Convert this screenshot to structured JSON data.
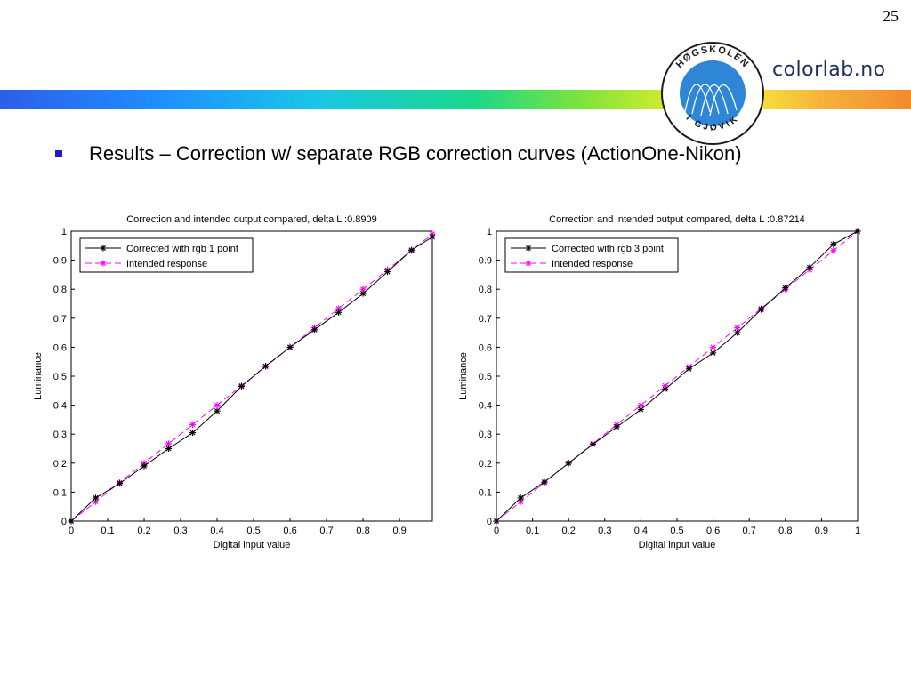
{
  "slide": {
    "page_number": "25",
    "brand": "colorlab.no",
    "logo": {
      "top_text": "HØGSKOLEN",
      "bottom_text": "I GJØVIK"
    },
    "bullet_text": "Results – Correction w/ separate RGB correction curves (ActionOne-Nikon)"
  },
  "chart_data": [
    {
      "type": "line",
      "title": "Correction and intended output compared, delta L :0.8909",
      "xlabel": "Digital input value",
      "ylabel": "Luminance",
      "xlim": [
        0,
        0.99
      ],
      "ylim": [
        0,
        1
      ],
      "xticks": [
        "0",
        "0.1",
        "0.2",
        "0.3",
        "0.4",
        "0.5",
        "0.6",
        "0.7",
        "0.8",
        "0.9"
      ],
      "xtick_values": [
        0,
        0.1,
        0.2,
        0.3,
        0.4,
        0.5,
        0.6,
        0.7,
        0.8,
        0.9
      ],
      "yticks": [
        "0",
        "0.1",
        "0.2",
        "0.3",
        "0.4",
        "0.5",
        "0.6",
        "0.7",
        "0.8",
        "0.9",
        "1"
      ],
      "ytick_values": [
        0,
        0.1,
        0.2,
        0.3,
        0.4,
        0.5,
        0.6,
        0.7,
        0.8,
        0.9,
        1
      ],
      "grid": false,
      "legend_position": "top-left",
      "series": [
        {
          "name": "Corrected with rgb 1 point",
          "color": "#000000",
          "dashed": false,
          "x": [
            0,
            0.067,
            0.133,
            0.2,
            0.267,
            0.333,
            0.4,
            0.467,
            0.533,
            0.6,
            0.667,
            0.733,
            0.8,
            0.867,
            0.933,
            0.99
          ],
          "y": [
            0,
            0.08,
            0.13,
            0.19,
            0.25,
            0.305,
            0.38,
            0.465,
            0.535,
            0.6,
            0.66,
            0.72,
            0.785,
            0.86,
            0.935,
            0.98
          ]
        },
        {
          "name": "Intended response",
          "color": "#ff00ff",
          "dashed": true,
          "x": [
            0,
            0.067,
            0.133,
            0.2,
            0.267,
            0.333,
            0.4,
            0.467,
            0.533,
            0.6,
            0.667,
            0.733,
            0.8,
            0.867,
            0.933,
            0.99
          ],
          "y": [
            0,
            0.067,
            0.133,
            0.2,
            0.267,
            0.333,
            0.4,
            0.467,
            0.533,
            0.6,
            0.667,
            0.733,
            0.8,
            0.867,
            0.933,
            0.99
          ]
        }
      ]
    },
    {
      "type": "line",
      "title": "Correction and intended output compared, delta L :0.87214",
      "xlabel": "Digital input value",
      "ylabel": "Luminance",
      "xlim": [
        0,
        1
      ],
      "ylim": [
        0,
        1
      ],
      "xticks": [
        "0",
        "0.1",
        "0.2",
        "0.3",
        "0.4",
        "0.5",
        "0.6",
        "0.7",
        "0.8",
        "0.9",
        "1"
      ],
      "xtick_values": [
        0,
        0.1,
        0.2,
        0.3,
        0.4,
        0.5,
        0.6,
        0.7,
        0.8,
        0.9,
        1
      ],
      "yticks": [
        "0",
        "0.1",
        "0.2",
        "0.3",
        "0.4",
        "0.5",
        "0.6",
        "0.7",
        "0.8",
        "0.9",
        "1"
      ],
      "ytick_values": [
        0,
        0.1,
        0.2,
        0.3,
        0.4,
        0.5,
        0.6,
        0.7,
        0.8,
        0.9,
        1
      ],
      "grid": false,
      "legend_position": "top-left",
      "series": [
        {
          "name": "Corrected with rgb 3 point",
          "color": "#000000",
          "dashed": false,
          "x": [
            0,
            0.067,
            0.133,
            0.2,
            0.267,
            0.333,
            0.4,
            0.467,
            0.533,
            0.6,
            0.667,
            0.733,
            0.8,
            0.867,
            0.933,
            1
          ],
          "y": [
            0,
            0.08,
            0.135,
            0.2,
            0.265,
            0.325,
            0.385,
            0.455,
            0.525,
            0.58,
            0.65,
            0.73,
            0.805,
            0.875,
            0.955,
            1
          ]
        },
        {
          "name": "Intended response",
          "color": "#ff00ff",
          "dashed": true,
          "x": [
            0,
            0.067,
            0.133,
            0.2,
            0.267,
            0.333,
            0.4,
            0.467,
            0.533,
            0.6,
            0.667,
            0.733,
            0.8,
            0.867,
            0.933,
            1
          ],
          "y": [
            0,
            0.067,
            0.133,
            0.2,
            0.267,
            0.333,
            0.4,
            0.467,
            0.533,
            0.6,
            0.667,
            0.733,
            0.8,
            0.867,
            0.933,
            1
          ]
        }
      ]
    }
  ]
}
